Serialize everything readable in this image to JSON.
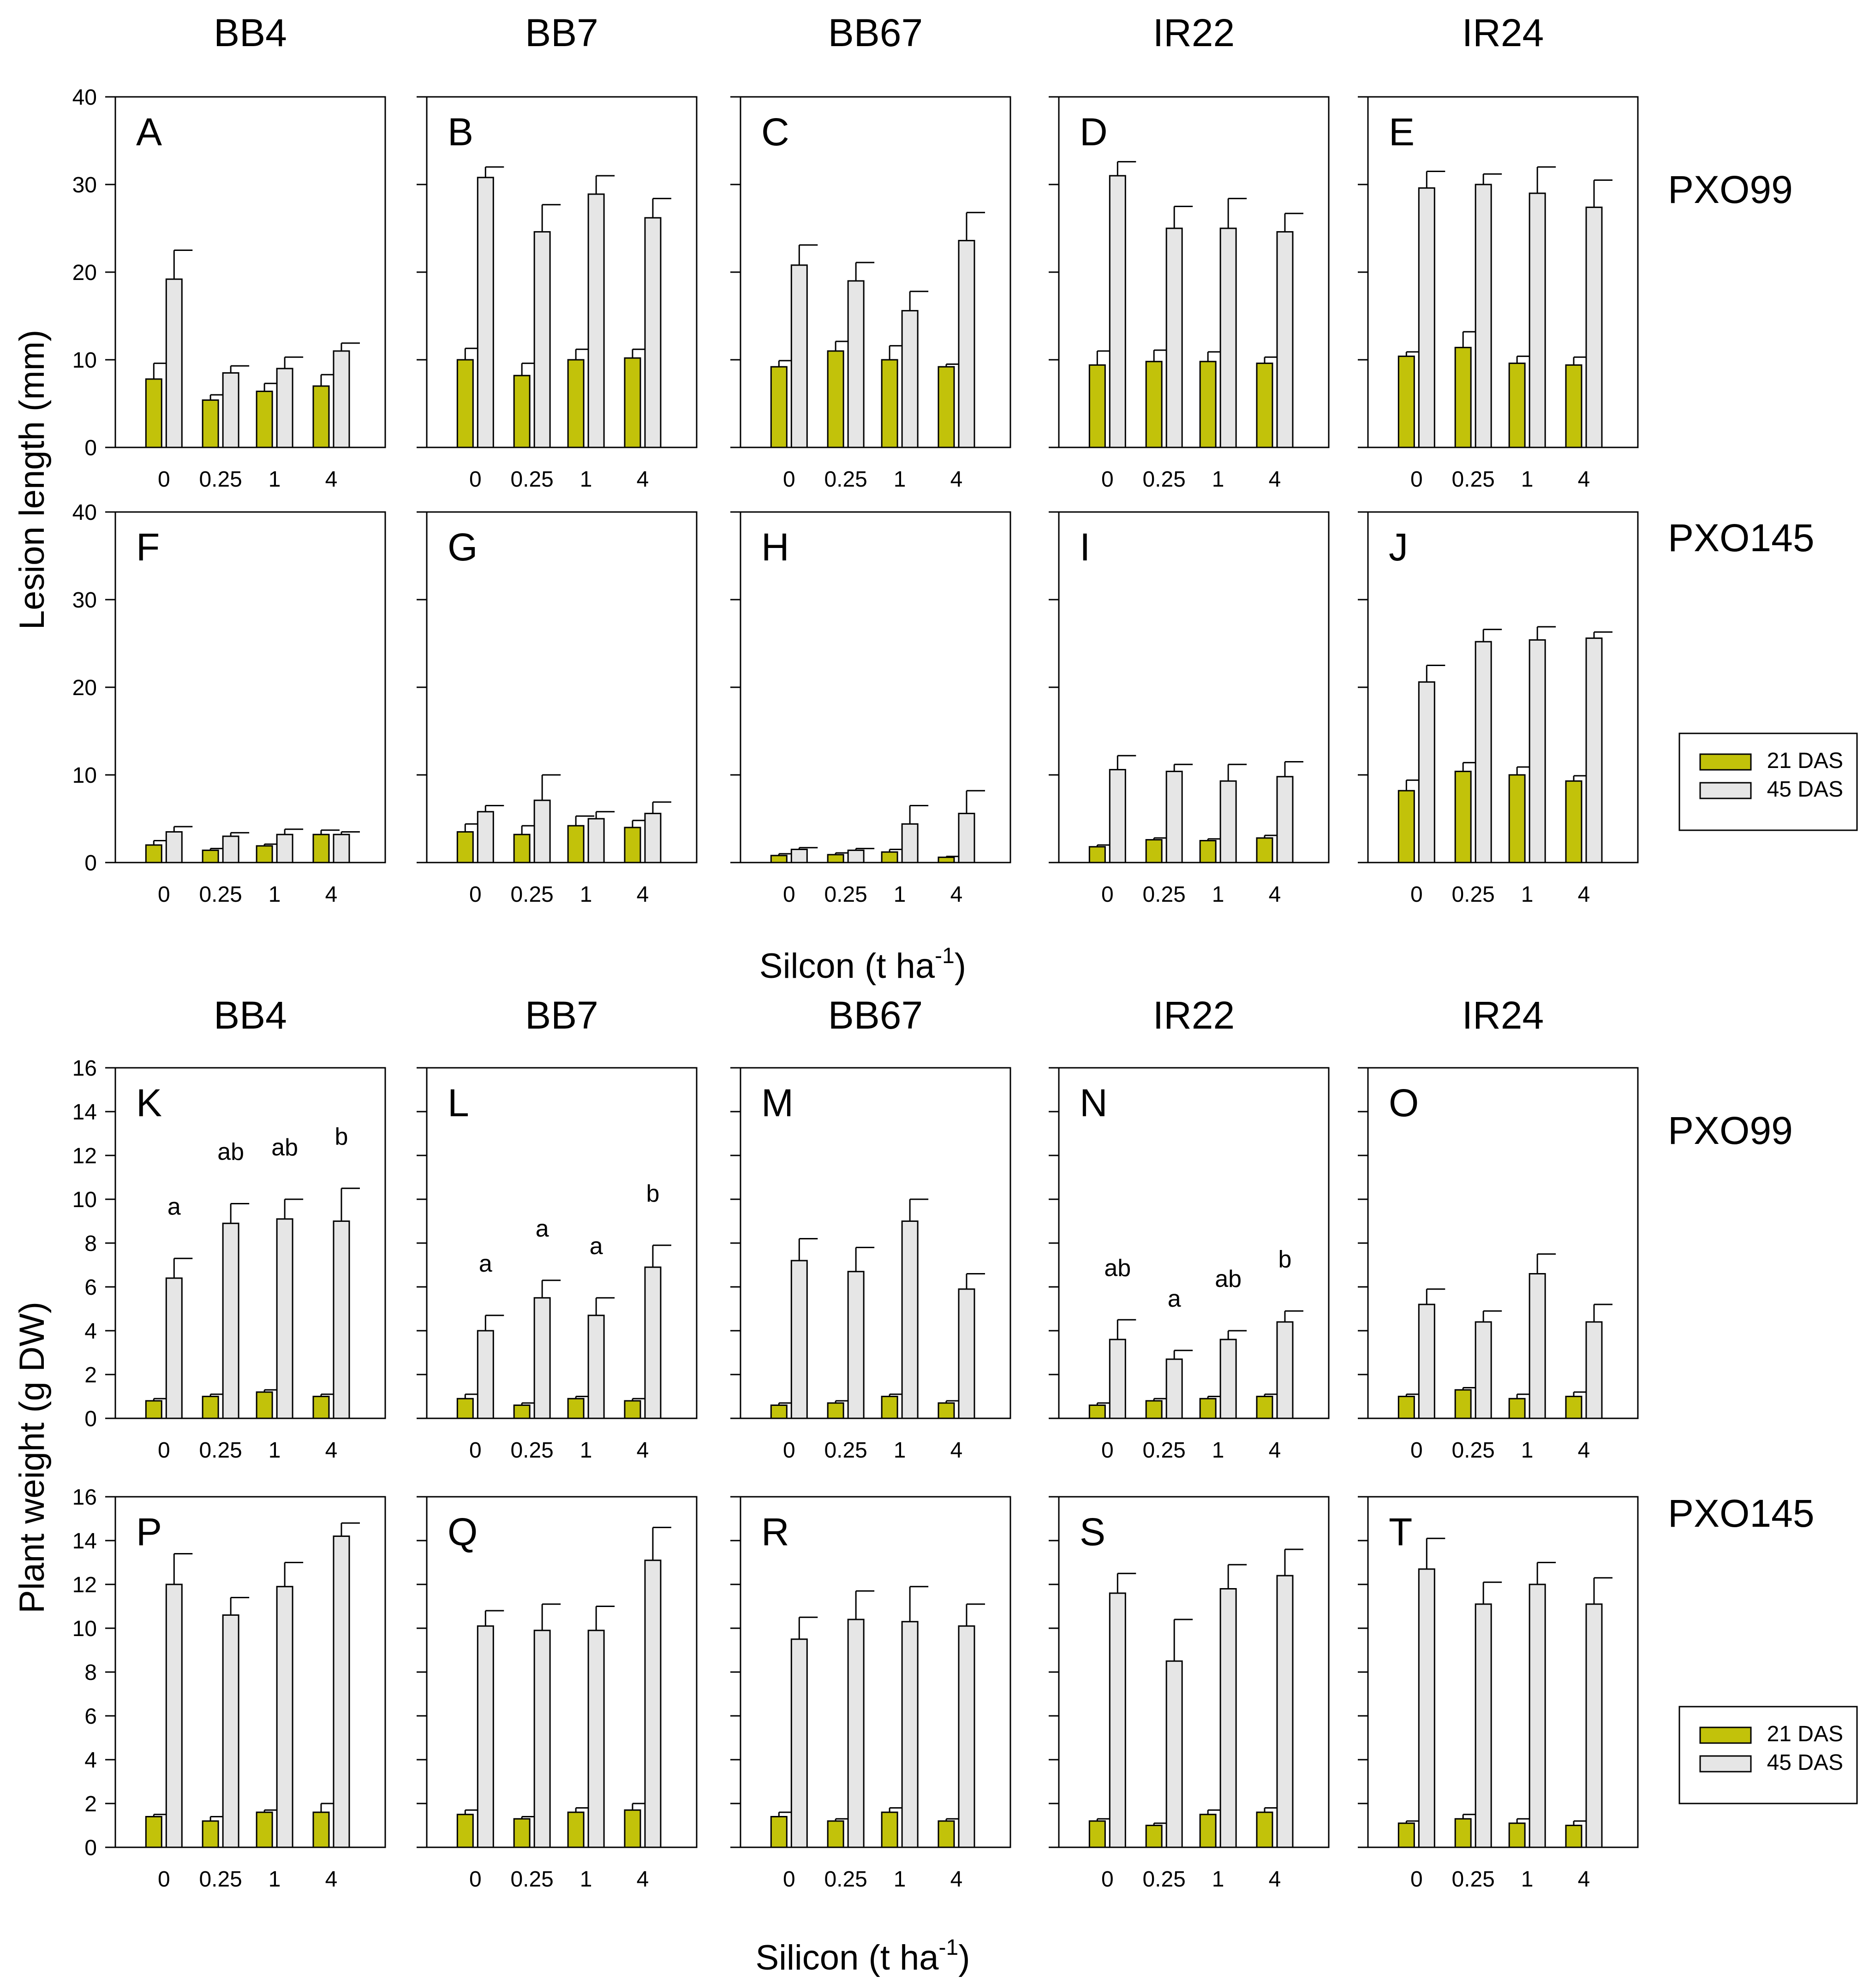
{
  "figure": {
    "cultivars": [
      "BB4",
      "BB7",
      "BB67",
      "IR22",
      "IR24"
    ],
    "strains": [
      "PXO99",
      "PXO145"
    ],
    "legend": [
      "21 DAS",
      "45 DAS"
    ],
    "colors": {
      "das21": "#c2c20a",
      "das45": "#e6e6e6",
      "stroke": "#000000"
    },
    "sections": [
      {
        "ylabel": "Lesion length (mm)",
        "xlabel": "Silcon (t ha",
        "xlabel_sup": "-1",
        "xlabel_tail": ")"
      },
      {
        "ylabel": "Plant weight (g DW)",
        "xlabel": "Silicon (t ha",
        "xlabel_sup": "-1",
        "xlabel_tail": ")"
      }
    ]
  },
  "chart_data": [
    {
      "type": "bar",
      "panel": "A",
      "cultivar": "BB4",
      "strain": "PXO99",
      "ylabel": "Lesion length (mm)",
      "ylim": [
        0,
        40
      ],
      "yticks": [
        0,
        10,
        20,
        30,
        40
      ],
      "categories": [
        "0",
        "0.25",
        "1",
        "4"
      ],
      "series": [
        {
          "name": "21 DAS",
          "values": [
            7.8,
            5.4,
            6.4,
            7.0
          ],
          "errors": [
            1.8,
            0.6,
            0.9,
            1.3
          ]
        },
        {
          "name": "45 DAS",
          "values": [
            19.2,
            8.5,
            9.0,
            11.0
          ],
          "errors": [
            3.3,
            0.8,
            1.3,
            0.9
          ]
        }
      ]
    },
    {
      "type": "bar",
      "panel": "B",
      "cultivar": "BB7",
      "strain": "PXO99",
      "ylabel": "Lesion length (mm)",
      "ylim": [
        0,
        40
      ],
      "yticks": [
        0,
        10,
        20,
        30,
        40
      ],
      "categories": [
        "0",
        "0.25",
        "1",
        "4"
      ],
      "series": [
        {
          "name": "21 DAS",
          "values": [
            10.0,
            8.2,
            10.0,
            10.2
          ],
          "errors": [
            1.3,
            1.4,
            1.2,
            1.0
          ]
        },
        {
          "name": "45 DAS",
          "values": [
            30.8,
            24.6,
            28.9,
            26.2
          ],
          "errors": [
            1.2,
            3.1,
            2.1,
            2.2
          ]
        }
      ]
    },
    {
      "type": "bar",
      "panel": "C",
      "cultivar": "BB67",
      "strain": "PXO99",
      "ylabel": "Lesion length (mm)",
      "ylim": [
        0,
        40
      ],
      "yticks": [
        0,
        10,
        20,
        30,
        40
      ],
      "categories": [
        "0",
        "0.25",
        "1",
        "4"
      ],
      "series": [
        {
          "name": "21 DAS",
          "values": [
            9.2,
            11.0,
            10.0,
            9.2
          ],
          "errors": [
            0.7,
            1.1,
            1.6,
            0.3
          ]
        },
        {
          "name": "45 DAS",
          "values": [
            20.8,
            19.0,
            15.6,
            23.6
          ],
          "errors": [
            2.3,
            2.1,
            2.2,
            3.2
          ]
        }
      ]
    },
    {
      "type": "bar",
      "panel": "D",
      "cultivar": "IR22",
      "strain": "PXO99",
      "ylabel": "Lesion length (mm)",
      "ylim": [
        0,
        40
      ],
      "yticks": [
        0,
        10,
        20,
        30,
        40
      ],
      "categories": [
        "0",
        "0.25",
        "1",
        "4"
      ],
      "series": [
        {
          "name": "21 DAS",
          "values": [
            9.4,
            9.8,
            9.8,
            9.6
          ],
          "errors": [
            1.6,
            1.3,
            1.1,
            0.7
          ]
        },
        {
          "name": "45 DAS",
          "values": [
            31.0,
            25.0,
            25.0,
            24.6
          ],
          "errors": [
            1.6,
            2.5,
            3.4,
            2.1
          ]
        }
      ]
    },
    {
      "type": "bar",
      "panel": "E",
      "cultivar": "IR24",
      "strain": "PXO99",
      "ylabel": "Lesion length (mm)",
      "ylim": [
        0,
        40
      ],
      "yticks": [
        0,
        10,
        20,
        30,
        40
      ],
      "categories": [
        "0",
        "0.25",
        "1",
        "4"
      ],
      "series": [
        {
          "name": "21 DAS",
          "values": [
            10.4,
            11.4,
            9.6,
            9.4
          ],
          "errors": [
            0.5,
            1.8,
            0.8,
            0.9
          ]
        },
        {
          "name": "45 DAS",
          "values": [
            29.6,
            30.0,
            29.0,
            27.4
          ],
          "errors": [
            1.9,
            1.2,
            3.0,
            3.1
          ]
        }
      ]
    },
    {
      "type": "bar",
      "panel": "F",
      "cultivar": "BB4",
      "strain": "PXO145",
      "ylabel": "Lesion length (mm)",
      "ylim": [
        0,
        40
      ],
      "yticks": [
        0,
        10,
        20,
        30,
        40
      ],
      "categories": [
        "0",
        "0.25",
        "1",
        "4"
      ],
      "series": [
        {
          "name": "21 DAS",
          "values": [
            2.0,
            1.4,
            1.9,
            3.2
          ],
          "errors": [
            0.5,
            0.2,
            0.2,
            0.5
          ]
        },
        {
          "name": "45 DAS",
          "values": [
            3.5,
            3.0,
            3.2,
            3.2
          ],
          "errors": [
            0.6,
            0.4,
            0.6,
            0.3
          ]
        }
      ]
    },
    {
      "type": "bar",
      "panel": "G",
      "cultivar": "BB7",
      "strain": "PXO145",
      "ylabel": "Lesion length (mm)",
      "ylim": [
        0,
        40
      ],
      "yticks": [
        0,
        10,
        20,
        30,
        40
      ],
      "categories": [
        "0",
        "0.25",
        "1",
        "4"
      ],
      "series": [
        {
          "name": "21 DAS",
          "values": [
            3.5,
            3.2,
            4.2,
            4.0
          ],
          "errors": [
            0.9,
            1.0,
            1.1,
            0.8
          ]
        },
        {
          "name": "45 DAS",
          "values": [
            5.8,
            7.1,
            5.0,
            5.6
          ],
          "errors": [
            0.7,
            2.9,
            0.8,
            1.3
          ]
        }
      ]
    },
    {
      "type": "bar",
      "panel": "H",
      "cultivar": "BB67",
      "strain": "PXO145",
      "ylabel": "Lesion length (mm)",
      "ylim": [
        0,
        40
      ],
      "yticks": [
        0,
        10,
        20,
        30,
        40
      ],
      "categories": [
        "0",
        "0.25",
        "1",
        "4"
      ],
      "series": [
        {
          "name": "21 DAS",
          "values": [
            0.8,
            0.9,
            1.2,
            0.6
          ],
          "errors": [
            0.2,
            0.2,
            0.3,
            0.1
          ]
        },
        {
          "name": "45 DAS",
          "values": [
            1.5,
            1.4,
            4.4,
            5.6
          ],
          "errors": [
            0.2,
            0.2,
            2.1,
            2.6
          ]
        }
      ]
    },
    {
      "type": "bar",
      "panel": "I",
      "cultivar": "IR22",
      "strain": "PXO145",
      "ylabel": "Lesion length (mm)",
      "ylim": [
        0,
        40
      ],
      "yticks": [
        0,
        10,
        20,
        30,
        40
      ],
      "categories": [
        "0",
        "0.25",
        "1",
        "4"
      ],
      "series": [
        {
          "name": "21 DAS",
          "values": [
            1.8,
            2.6,
            2.5,
            2.8
          ],
          "errors": [
            0.2,
            0.2,
            0.2,
            0.3
          ]
        },
        {
          "name": "45 DAS",
          "values": [
            10.6,
            10.4,
            9.3,
            9.8
          ],
          "errors": [
            1.6,
            0.8,
            1.9,
            1.7
          ]
        }
      ]
    },
    {
      "type": "bar",
      "panel": "J",
      "cultivar": "IR24",
      "strain": "PXO145",
      "ylabel": "Lesion length (mm)",
      "ylim": [
        0,
        40
      ],
      "yticks": [
        0,
        10,
        20,
        30,
        40
      ],
      "categories": [
        "0",
        "0.25",
        "1",
        "4"
      ],
      "series": [
        {
          "name": "21 DAS",
          "values": [
            8.2,
            10.4,
            10.0,
            9.3
          ],
          "errors": [
            1.2,
            1.0,
            0.9,
            0.6
          ]
        },
        {
          "name": "45 DAS",
          "values": [
            20.6,
            25.2,
            25.4,
            25.6
          ],
          "errors": [
            1.9,
            1.4,
            1.5,
            0.7
          ]
        }
      ]
    },
    {
      "type": "bar",
      "panel": "K",
      "cultivar": "BB4",
      "strain": "PXO99",
      "ylabel": "Plant weight (g DW)",
      "ylim": [
        0,
        16
      ],
      "yticks": [
        0,
        2,
        4,
        6,
        8,
        10,
        12,
        14,
        16
      ],
      "categories": [
        "0",
        "0.25",
        "1",
        "4"
      ],
      "series": [
        {
          "name": "21 DAS",
          "values": [
            0.8,
            1.0,
            1.2,
            1.0
          ],
          "errors": [
            0.1,
            0.1,
            0.1,
            0.1
          ]
        },
        {
          "name": "45 DAS",
          "values": [
            6.4,
            8.9,
            9.1,
            9.0
          ],
          "errors": [
            0.9,
            0.9,
            0.9,
            1.5
          ]
        }
      ],
      "annotations": [
        "a",
        "ab",
        "ab",
        "b"
      ]
    },
    {
      "type": "bar",
      "panel": "L",
      "cultivar": "BB7",
      "strain": "PXO99",
      "ylabel": "Plant weight (g DW)",
      "ylim": [
        0,
        16
      ],
      "yticks": [
        0,
        2,
        4,
        6,
        8,
        10,
        12,
        14,
        16
      ],
      "categories": [
        "0",
        "0.25",
        "1",
        "4"
      ],
      "series": [
        {
          "name": "21 DAS",
          "values": [
            0.9,
            0.6,
            0.9,
            0.8
          ],
          "errors": [
            0.2,
            0.1,
            0.1,
            0.1
          ]
        },
        {
          "name": "45 DAS",
          "values": [
            4.0,
            5.5,
            4.7,
            6.9
          ],
          "errors": [
            0.7,
            0.8,
            0.8,
            1.0
          ]
        }
      ],
      "annotations": [
        "a",
        "a",
        "a",
        "b"
      ]
    },
    {
      "type": "bar",
      "panel": "M",
      "cultivar": "BB67",
      "strain": "PXO99",
      "ylabel": "Plant weight (g DW)",
      "ylim": [
        0,
        16
      ],
      "yticks": [
        0,
        2,
        4,
        6,
        8,
        10,
        12,
        14,
        16
      ],
      "categories": [
        "0",
        "0.25",
        "1",
        "4"
      ],
      "series": [
        {
          "name": "21 DAS",
          "values": [
            0.6,
            0.7,
            1.0,
            0.7
          ],
          "errors": [
            0.1,
            0.1,
            0.1,
            0.1
          ]
        },
        {
          "name": "45 DAS",
          "values": [
            7.2,
            6.7,
            9.0,
            5.9
          ],
          "errors": [
            1.0,
            1.1,
            1.0,
            0.7
          ]
        }
      ]
    },
    {
      "type": "bar",
      "panel": "N",
      "cultivar": "IR22",
      "strain": "PXO99",
      "ylabel": "Plant weight (g DW)",
      "ylim": [
        0,
        16
      ],
      "yticks": [
        0,
        2,
        4,
        6,
        8,
        10,
        12,
        14,
        16
      ],
      "categories": [
        "0",
        "0.25",
        "1",
        "4"
      ],
      "series": [
        {
          "name": "21 DAS",
          "values": [
            0.6,
            0.8,
            0.9,
            1.0
          ],
          "errors": [
            0.1,
            0.1,
            0.1,
            0.1
          ]
        },
        {
          "name": "45 DAS",
          "values": [
            3.6,
            2.7,
            3.6,
            4.4
          ],
          "errors": [
            0.9,
            0.4,
            0.4,
            0.5
          ]
        }
      ],
      "annotations": [
        "ab",
        "a",
        "ab",
        "b"
      ]
    },
    {
      "type": "bar",
      "panel": "O",
      "cultivar": "IR24",
      "strain": "PXO99",
      "ylabel": "Plant weight (g DW)",
      "ylim": [
        0,
        16
      ],
      "yticks": [
        0,
        2,
        4,
        6,
        8,
        10,
        12,
        14,
        16
      ],
      "categories": [
        "0",
        "0.25",
        "1",
        "4"
      ],
      "series": [
        {
          "name": "21 DAS",
          "values": [
            1.0,
            1.3,
            0.9,
            1.0
          ],
          "errors": [
            0.1,
            0.1,
            0.2,
            0.2
          ]
        },
        {
          "name": "45 DAS",
          "values": [
            5.2,
            4.4,
            6.6,
            4.4
          ],
          "errors": [
            0.7,
            0.5,
            0.9,
            0.8
          ]
        }
      ]
    },
    {
      "type": "bar",
      "panel": "P",
      "cultivar": "BB4",
      "strain": "PXO145",
      "ylabel": "Plant weight (g DW)",
      "ylim": [
        0,
        16
      ],
      "yticks": [
        0,
        2,
        4,
        6,
        8,
        10,
        12,
        14,
        16
      ],
      "categories": [
        "0",
        "0.25",
        "1",
        "4"
      ],
      "series": [
        {
          "name": "21 DAS",
          "values": [
            1.4,
            1.2,
            1.6,
            1.6
          ],
          "errors": [
            0.1,
            0.2,
            0.1,
            0.4
          ]
        },
        {
          "name": "45 DAS",
          "values": [
            12.0,
            10.6,
            11.9,
            14.2
          ],
          "errors": [
            1.4,
            0.8,
            1.1,
            0.6
          ]
        }
      ]
    },
    {
      "type": "bar",
      "panel": "Q",
      "cultivar": "BB7",
      "strain": "PXO145",
      "ylabel": "Plant weight (g DW)",
      "ylim": [
        0,
        16
      ],
      "yticks": [
        0,
        2,
        4,
        6,
        8,
        10,
        12,
        14,
        16
      ],
      "categories": [
        "0",
        "0.25",
        "1",
        "4"
      ],
      "series": [
        {
          "name": "21 DAS",
          "values": [
            1.5,
            1.3,
            1.6,
            1.7
          ],
          "errors": [
            0.2,
            0.1,
            0.2,
            0.3
          ]
        },
        {
          "name": "45 DAS",
          "values": [
            10.1,
            9.9,
            9.9,
            13.1
          ],
          "errors": [
            0.7,
            1.2,
            1.1,
            1.5
          ]
        }
      ]
    },
    {
      "type": "bar",
      "panel": "R",
      "cultivar": "BB67",
      "strain": "PXO145",
      "ylabel": "Plant weight (g DW)",
      "ylim": [
        0,
        16
      ],
      "yticks": [
        0,
        2,
        4,
        6,
        8,
        10,
        12,
        14,
        16
      ],
      "categories": [
        "0",
        "0.25",
        "1",
        "4"
      ],
      "series": [
        {
          "name": "21 DAS",
          "values": [
            1.4,
            1.2,
            1.6,
            1.2
          ],
          "errors": [
            0.2,
            0.1,
            0.2,
            0.1
          ]
        },
        {
          "name": "45 DAS",
          "values": [
            9.5,
            10.4,
            10.3,
            10.1
          ],
          "errors": [
            1.0,
            1.3,
            1.6,
            1.0
          ]
        }
      ]
    },
    {
      "type": "bar",
      "panel": "S",
      "cultivar": "IR22",
      "strain": "PXO145",
      "ylabel": "Plant weight (g DW)",
      "ylim": [
        0,
        16
      ],
      "yticks": [
        0,
        2,
        4,
        6,
        8,
        10,
        12,
        14,
        16
      ],
      "categories": [
        "0",
        "0.25",
        "1",
        "4"
      ],
      "series": [
        {
          "name": "21 DAS",
          "values": [
            1.2,
            1.0,
            1.5,
            1.6
          ],
          "errors": [
            0.1,
            0.1,
            0.2,
            0.2
          ]
        },
        {
          "name": "45 DAS",
          "values": [
            11.6,
            8.5,
            11.8,
            12.4
          ],
          "errors": [
            0.9,
            1.9,
            1.1,
            1.2
          ]
        }
      ]
    },
    {
      "type": "bar",
      "panel": "T",
      "cultivar": "IR24",
      "strain": "PXO145",
      "ylabel": "Plant weight (g DW)",
      "ylim": [
        0,
        16
      ],
      "yticks": [
        0,
        2,
        4,
        6,
        8,
        10,
        12,
        14,
        16
      ],
      "categories": [
        "0",
        "0.25",
        "1",
        "4"
      ],
      "series": [
        {
          "name": "21 DAS",
          "values": [
            1.1,
            1.3,
            1.1,
            1.0
          ],
          "errors": [
            0.1,
            0.2,
            0.2,
            0.2
          ]
        },
        {
          "name": "45 DAS",
          "values": [
            12.7,
            11.1,
            12.0,
            11.1
          ],
          "errors": [
            1.4,
            1.0,
            1.0,
            1.2
          ]
        }
      ]
    }
  ]
}
